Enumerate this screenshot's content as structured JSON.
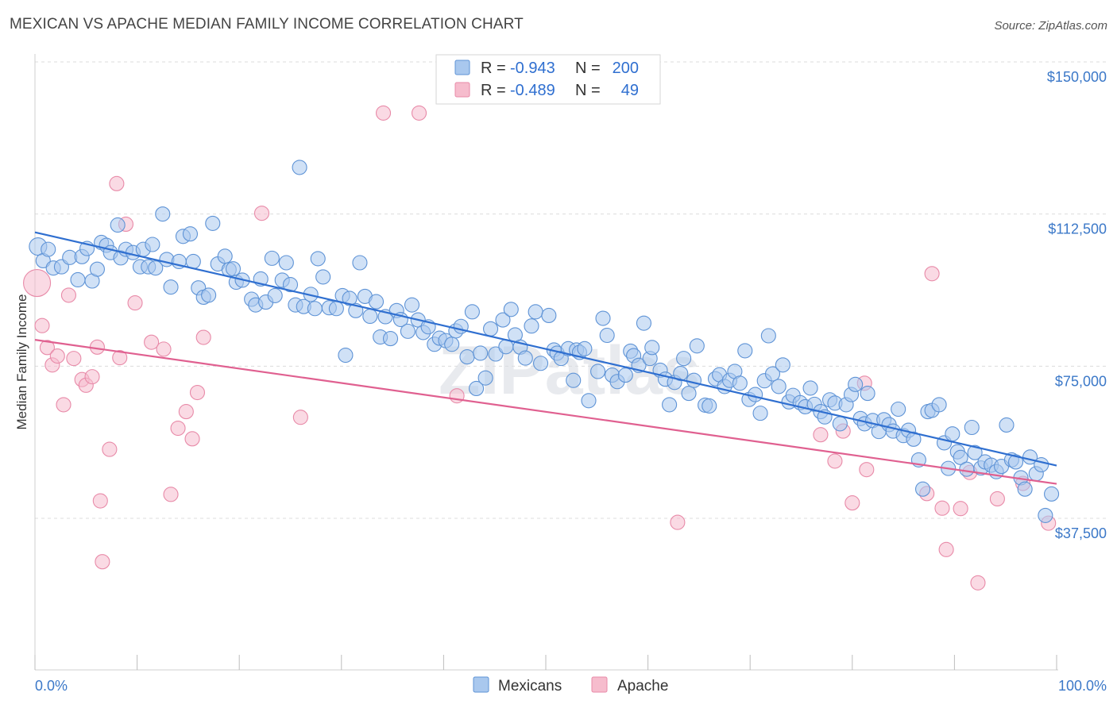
{
  "title": "MEXICAN VS APACHE MEDIAN FAMILY INCOME CORRELATION CHART",
  "source": "Source: ZipAtlas.com",
  "watermark": "ZIPatlas",
  "legend": {
    "mexicans": {
      "r_label": "R =",
      "r_value": "-0.943",
      "n_label": "N =",
      "n_value": "200"
    },
    "apache": {
      "r_label": "R =",
      "r_value": "-0.489",
      "n_label": "N =",
      "n_value": "49"
    }
  },
  "bottom_legend": {
    "mexicans": "Mexicans",
    "apache": "Apache"
  },
  "colors": {
    "mexicans_fill": "#a9c8ee",
    "mexicans_stroke": "#5e93d6",
    "mexicans_line": "#2f6fd0",
    "apache_fill": "#f6bccd",
    "apache_stroke": "#e88aa8",
    "apache_line": "#e06090",
    "tick_text": "#3b78c8",
    "grid": "#dcdcdc"
  },
  "chart_data": {
    "type": "scatter",
    "title": "MEXICAN VS APACHE MEDIAN FAMILY INCOME CORRELATION CHART",
    "xlabel": "",
    "ylabel": "Median Family Income",
    "xlim": [
      0,
      100
    ],
    "ylim": [
      0,
      155000
    ],
    "x_tick_labels": [
      "0.0%",
      "100.0%"
    ],
    "y_ticks": [
      37500,
      75000,
      112500,
      150000
    ],
    "y_tick_labels": [
      "$37,500",
      "$75,000",
      "$112,500",
      "$150,000"
    ],
    "grid": "horizontal dashed",
    "series": [
      {
        "name": "Mexicans",
        "trendline": {
          "x": [
            0,
            100
          ],
          "y": [
            108000,
            50500
          ]
        },
        "points": [
          [
            0.3,
            104500
          ],
          [
            0.8,
            101000
          ],
          [
            1.3,
            103800
          ],
          [
            1.8,
            99200
          ],
          [
            2.6,
            99500
          ],
          [
            3.4,
            101800
          ],
          [
            4.2,
            96300
          ],
          [
            4.6,
            102000
          ],
          [
            5.1,
            104000
          ],
          [
            5.6,
            96000
          ],
          [
            6.1,
            98900
          ],
          [
            6.5,
            105500
          ],
          [
            7.0,
            104800
          ],
          [
            7.4,
            103000
          ],
          [
            8.1,
            109800
          ],
          [
            8.4,
            101700
          ],
          [
            8.9,
            103800
          ],
          [
            9.6,
            103000
          ],
          [
            10.3,
            99500
          ],
          [
            10.6,
            103800
          ],
          [
            11.1,
            99500
          ],
          [
            11.5,
            105000
          ],
          [
            11.8,
            99200
          ],
          [
            12.5,
            112500
          ],
          [
            12.9,
            101300
          ],
          [
            13.3,
            94500
          ],
          [
            14.1,
            100800
          ],
          [
            14.5,
            107000
          ],
          [
            15.2,
            107600
          ],
          [
            15.5,
            100800
          ],
          [
            16.0,
            94300
          ],
          [
            16.5,
            92000
          ],
          [
            17.0,
            92500
          ],
          [
            17.4,
            110200
          ],
          [
            17.9,
            100200
          ],
          [
            18.6,
            102100
          ],
          [
            19.0,
            98800
          ],
          [
            19.4,
            99000
          ],
          [
            19.7,
            95700
          ],
          [
            20.3,
            96200
          ],
          [
            21.2,
            91500
          ],
          [
            21.6,
            90100
          ],
          [
            22.1,
            96500
          ],
          [
            22.6,
            90800
          ],
          [
            23.2,
            101600
          ],
          [
            23.5,
            92400
          ],
          [
            24.2,
            96200
          ],
          [
            24.6,
            100500
          ],
          [
            25.0,
            95100
          ],
          [
            25.5,
            90100
          ],
          [
            25.9,
            124000
          ],
          [
            26.3,
            89700
          ],
          [
            27.0,
            92700
          ],
          [
            27.4,
            89200
          ],
          [
            27.7,
            101500
          ],
          [
            28.2,
            97000
          ],
          [
            28.8,
            89400
          ],
          [
            29.5,
            89200
          ],
          [
            30.1,
            92400
          ],
          [
            30.4,
            77700
          ],
          [
            30.8,
            91700
          ],
          [
            31.4,
            88700
          ],
          [
            31.8,
            100500
          ],
          [
            32.3,
            92200
          ],
          [
            32.8,
            87300
          ],
          [
            33.4,
            90900
          ],
          [
            33.8,
            82200
          ],
          [
            34.3,
            87200
          ],
          [
            34.8,
            81800
          ],
          [
            35.4,
            88700
          ],
          [
            35.8,
            86500
          ],
          [
            36.5,
            83600
          ],
          [
            36.9,
            90100
          ],
          [
            37.5,
            86400
          ],
          [
            38.0,
            83300
          ],
          [
            38.5,
            84700
          ],
          [
            39.1,
            80400
          ],
          [
            39.6,
            81900
          ],
          [
            40.2,
            81300
          ],
          [
            40.8,
            80400
          ],
          [
            41.2,
            83700
          ],
          [
            41.7,
            84800
          ],
          [
            42.3,
            77300
          ],
          [
            42.8,
            88400
          ],
          [
            43.2,
            69500
          ],
          [
            43.6,
            78200
          ],
          [
            44.1,
            72100
          ],
          [
            44.6,
            84200
          ],
          [
            45.1,
            78000
          ],
          [
            45.8,
            86400
          ],
          [
            46.1,
            79800
          ],
          [
            46.6,
            89000
          ],
          [
            47.0,
            82700
          ],
          [
            47.5,
            79700
          ],
          [
            48.0,
            77000
          ],
          [
            48.6,
            84900
          ],
          [
            49.0,
            88400
          ],
          [
            49.5,
            75700
          ],
          [
            50.3,
            87500
          ],
          [
            50.8,
            79000
          ],
          [
            51.1,
            78200
          ],
          [
            51.5,
            76900
          ],
          [
            52.2,
            79300
          ],
          [
            52.7,
            71500
          ],
          [
            53.0,
            79000
          ],
          [
            53.3,
            78400
          ],
          [
            53.8,
            79300
          ],
          [
            54.2,
            66500
          ],
          [
            55.1,
            73700
          ],
          [
            55.6,
            86800
          ],
          [
            56.0,
            82600
          ],
          [
            56.5,
            72800
          ],
          [
            57.0,
            71200
          ],
          [
            57.8,
            72800
          ],
          [
            58.3,
            78700
          ],
          [
            58.6,
            77600
          ],
          [
            59.1,
            75200
          ],
          [
            59.6,
            85600
          ],
          [
            60.2,
            76900
          ],
          [
            60.4,
            79600
          ],
          [
            61.2,
            74000
          ],
          [
            61.7,
            71800
          ],
          [
            62.1,
            65500
          ],
          [
            62.6,
            71000
          ],
          [
            63.2,
            73200
          ],
          [
            63.5,
            76900
          ],
          [
            64.0,
            68300
          ],
          [
            64.5,
            71500
          ],
          [
            64.8,
            80000
          ],
          [
            65.6,
            65400
          ],
          [
            66.0,
            65200
          ],
          [
            66.6,
            71900
          ],
          [
            67.0,
            72900
          ],
          [
            67.5,
            70000
          ],
          [
            68.0,
            71500
          ],
          [
            68.5,
            73700
          ],
          [
            69.0,
            70800
          ],
          [
            69.5,
            78800
          ],
          [
            69.9,
            66800
          ],
          [
            70.5,
            68000
          ],
          [
            71.0,
            63400
          ],
          [
            71.4,
            71400
          ],
          [
            71.8,
            82500
          ],
          [
            72.2,
            73100
          ],
          [
            72.8,
            70000
          ],
          [
            73.2,
            75300
          ],
          [
            73.8,
            66200
          ],
          [
            74.2,
            67800
          ],
          [
            74.9,
            66000
          ],
          [
            75.4,
            65000
          ],
          [
            75.9,
            69600
          ],
          [
            76.3,
            65600
          ],
          [
            76.9,
            63800
          ],
          [
            77.3,
            62500
          ],
          [
            77.8,
            66700
          ],
          [
            78.3,
            65900
          ],
          [
            78.8,
            60800
          ],
          [
            79.4,
            65500
          ],
          [
            79.9,
            68000
          ],
          [
            80.3,
            70500
          ],
          [
            80.8,
            62100
          ],
          [
            81.2,
            60800
          ],
          [
            81.5,
            68300
          ],
          [
            82.0,
            61600
          ],
          [
            82.6,
            58900
          ],
          [
            83.1,
            61800
          ],
          [
            83.6,
            60600
          ],
          [
            84.0,
            59000
          ],
          [
            84.5,
            64400
          ],
          [
            85.0,
            57900
          ],
          [
            85.5,
            59200
          ],
          [
            86.0,
            57000
          ],
          [
            86.5,
            51900
          ],
          [
            86.9,
            44700
          ],
          [
            87.4,
            63800
          ],
          [
            87.8,
            64100
          ],
          [
            88.5,
            65500
          ],
          [
            89.0,
            56100
          ],
          [
            89.4,
            49800
          ],
          [
            89.8,
            58300
          ],
          [
            90.3,
            53900
          ],
          [
            90.6,
            52500
          ],
          [
            91.2,
            49600
          ],
          [
            91.7,
            59900
          ],
          [
            92.0,
            53700
          ],
          [
            92.6,
            49900
          ],
          [
            93.0,
            51400
          ],
          [
            93.6,
            50600
          ],
          [
            94.1,
            49000
          ],
          [
            94.6,
            50300
          ],
          [
            95.1,
            60500
          ],
          [
            95.6,
            51900
          ],
          [
            96.0,
            51400
          ],
          [
            96.5,
            47500
          ],
          [
            96.9,
            44700
          ],
          [
            97.4,
            52600
          ],
          [
            98.0,
            48500
          ],
          [
            98.5,
            50700
          ],
          [
            98.9,
            38200
          ],
          [
            99.5,
            43500
          ]
        ]
      },
      {
        "name": "Apache",
        "trendline": {
          "x": [
            0,
            100
          ],
          "y": [
            81500,
            46000
          ]
        },
        "points": [
          [
            0.2,
            95500
          ],
          [
            0.7,
            85000
          ],
          [
            1.2,
            79600
          ],
          [
            1.7,
            75300
          ],
          [
            2.2,
            77500
          ],
          [
            2.8,
            65500
          ],
          [
            3.3,
            92500
          ],
          [
            3.8,
            76900
          ],
          [
            4.6,
            71700
          ],
          [
            5.0,
            70300
          ],
          [
            5.6,
            72400
          ],
          [
            6.1,
            79700
          ],
          [
            6.4,
            41800
          ],
          [
            6.6,
            26800
          ],
          [
            7.3,
            54500
          ],
          [
            8.0,
            120000
          ],
          [
            8.3,
            77100
          ],
          [
            8.9,
            110000
          ],
          [
            9.8,
            90600
          ],
          [
            11.4,
            80900
          ],
          [
            12.6,
            79200
          ],
          [
            13.3,
            43400
          ],
          [
            14.0,
            59700
          ],
          [
            14.8,
            63800
          ],
          [
            15.4,
            57100
          ],
          [
            15.9,
            68500
          ],
          [
            16.5,
            82100
          ],
          [
            22.2,
            112700
          ],
          [
            26.0,
            62400
          ],
          [
            34.1,
            137400
          ],
          [
            37.6,
            137400
          ],
          [
            41.3,
            67700
          ],
          [
            62.9,
            36500
          ],
          [
            76.9,
            58100
          ],
          [
            78.3,
            51600
          ],
          [
            79.1,
            59000
          ],
          [
            80.0,
            41300
          ],
          [
            81.2,
            70800
          ],
          [
            81.4,
            49500
          ],
          [
            87.3,
            43600
          ],
          [
            87.8,
            97800
          ],
          [
            88.8,
            40000
          ],
          [
            89.2,
            29800
          ],
          [
            90.6,
            39900
          ],
          [
            91.5,
            48800
          ],
          [
            92.3,
            21600
          ],
          [
            94.2,
            42300
          ],
          [
            96.7,
            46100
          ],
          [
            99.2,
            36300
          ]
        ]
      }
    ]
  }
}
